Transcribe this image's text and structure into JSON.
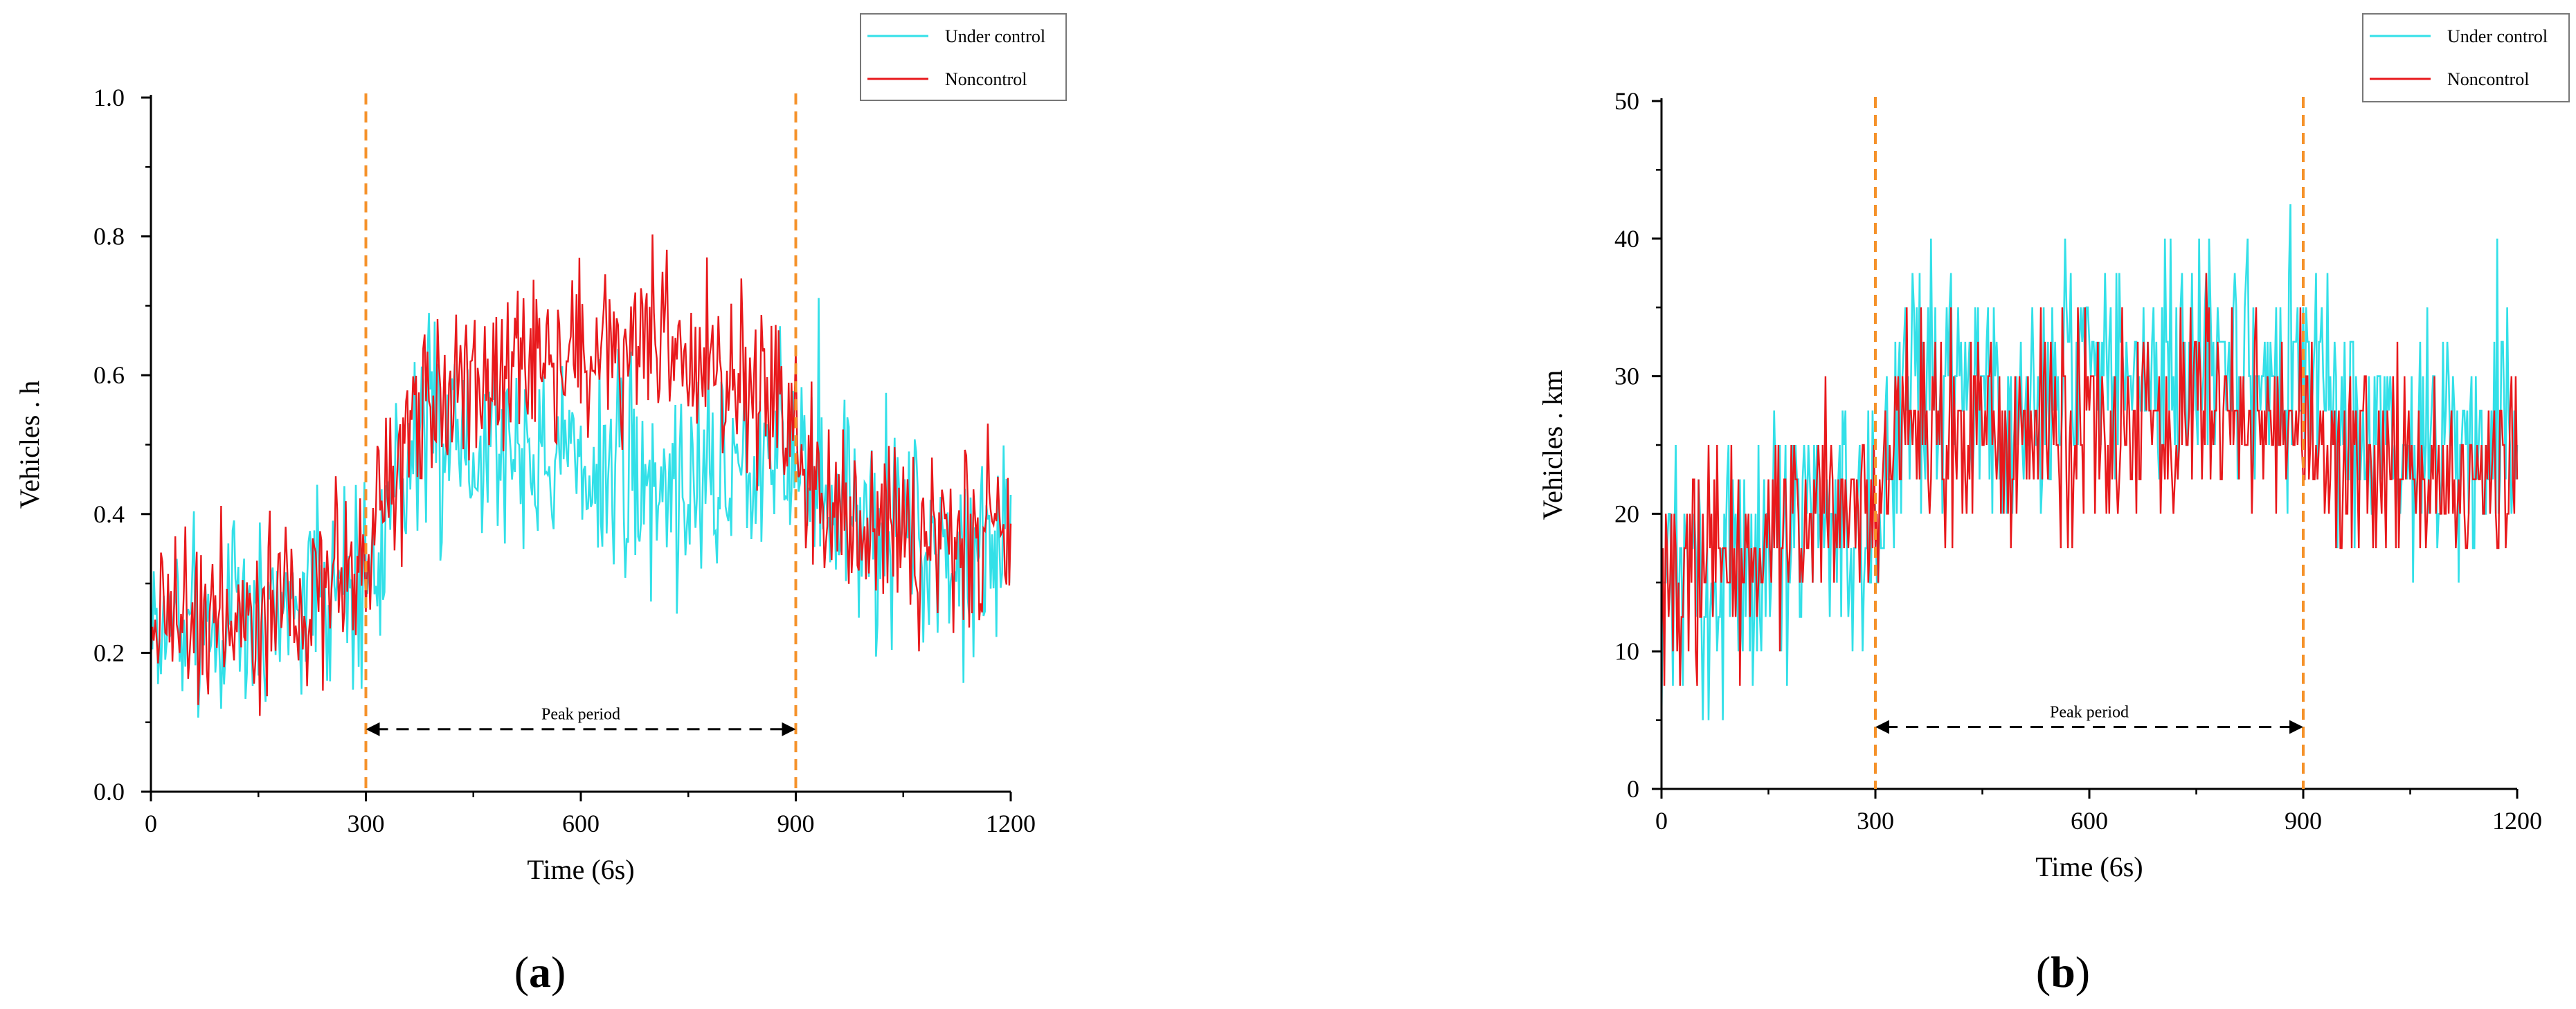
{
  "chart_data": [
    {
      "type": "line",
      "panel_label": "a",
      "xlabel": "Time (6s)",
      "ylabel": "Vehicles . h",
      "xlim": [
        0,
        1200
      ],
      "ylim": [
        0,
        1.0
      ],
      "x_ticks": [
        0,
        300,
        600,
        900,
        1200
      ],
      "y_ticks": [
        0.0,
        0.2,
        0.4,
        0.6,
        0.8,
        1.0
      ],
      "y_tick_labels": [
        "0.0",
        "0.2",
        "0.4",
        "0.6",
        "0.8",
        "1.0"
      ],
      "legend_position": "top-right",
      "annotation": {
        "text": "Peak period",
        "x_start": 300,
        "x_end": 900,
        "y": 0.09
      },
      "vlines": [
        300,
        900
      ],
      "colors": {
        "under_control": "#33e0e8",
        "noncontrol": "#e8191c",
        "vline": "#f5922a"
      },
      "series": [
        {
          "name": "Under control",
          "profile_x": [
            0,
            100,
            200,
            300,
            330,
            400,
            500,
            600,
            700,
            800,
            880,
            930,
            1000,
            1100,
            1200
          ],
          "profile_mean": [
            0.24,
            0.23,
            0.28,
            0.3,
            0.44,
            0.52,
            0.5,
            0.47,
            0.44,
            0.46,
            0.52,
            0.42,
            0.37,
            0.36,
            0.36
          ],
          "noise": 0.11,
          "seed": 7
        },
        {
          "name": "Noncontrol",
          "profile_x": [
            0,
            100,
            200,
            300,
            330,
            400,
            500,
            600,
            700,
            800,
            880,
            930,
            1000,
            1100,
            1200
          ],
          "profile_mean": [
            0.25,
            0.24,
            0.29,
            0.31,
            0.46,
            0.56,
            0.59,
            0.62,
            0.63,
            0.62,
            0.58,
            0.4,
            0.36,
            0.36,
            0.36
          ],
          "noise": 0.1,
          "seed": 19
        }
      ]
    },
    {
      "type": "line",
      "panel_label": "b",
      "xlabel": "Time (6s)",
      "ylabel": "Vehicles . km",
      "xlim": [
        0,
        1200
      ],
      "ylim": [
        0,
        50
      ],
      "x_ticks": [
        0,
        300,
        600,
        900,
        1200
      ],
      "y_ticks": [
        0,
        10,
        20,
        30,
        40,
        50
      ],
      "y_tick_labels": [
        "0",
        "10",
        "20",
        "30",
        "40",
        "50"
      ],
      "legend_position": "top-right",
      "annotation": {
        "text": "Peak period",
        "x_start": 300,
        "x_end": 900,
        "y": 4.5
      },
      "vlines": [
        300,
        900
      ],
      "colors": {
        "under_control": "#33e0e8",
        "noncontrol": "#e8191c",
        "vline": "#f5922a"
      },
      "series": [
        {
          "name": "Under control",
          "profile_x": [
            0,
            100,
            200,
            300,
            330,
            400,
            500,
            600,
            700,
            800,
            900,
            950,
            1000,
            1100,
            1200
          ],
          "profile_mean": [
            15,
            16,
            19,
            20,
            28,
            30,
            29,
            30,
            31,
            31,
            30,
            27,
            25,
            25,
            25
          ],
          "noise": 6.5,
          "step": 2.5,
          "seed": 31
        },
        {
          "name": "Noncontrol",
          "profile_x": [
            0,
            100,
            200,
            300,
            330,
            400,
            500,
            600,
            700,
            800,
            900,
            950,
            1000,
            1100,
            1200
          ],
          "profile_mean": [
            15,
            17,
            20,
            21,
            27,
            26,
            26,
            26,
            27,
            27,
            27,
            24,
            23,
            23,
            23
          ],
          "noise": 5.5,
          "step": 2.5,
          "seed": 43
        }
      ]
    }
  ]
}
